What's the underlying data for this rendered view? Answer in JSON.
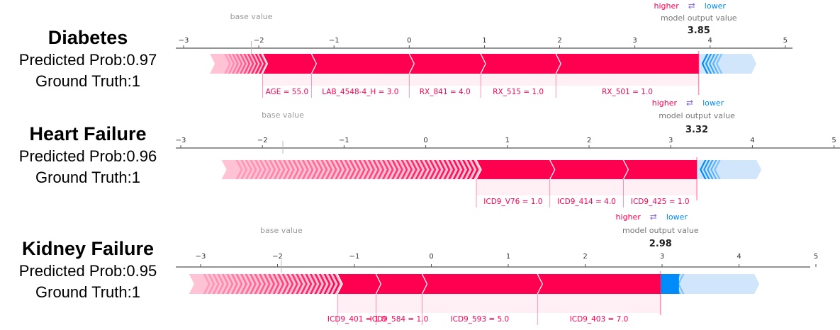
{
  "legend": {
    "higher": "higher",
    "arrows": "⇄",
    "lower": "lower",
    "output_label": "model output value",
    "base_label": "base value"
  },
  "colors": {
    "pos": "#ff0051",
    "pos_light": "#ffc3d5",
    "neg": "#008bfb",
    "neg_light": "#d1e6fa",
    "axis": "#333333",
    "tick": "#666666"
  },
  "panels": [
    {
      "disease": "Diabetes",
      "prob_line": "Predicted Prob:0.97",
      "truth_line": "Ground Truth:1"
    },
    {
      "disease": "Heart Failure",
      "prob_line": "Predicted Prob:0.96",
      "truth_line": "Ground Truth:1"
    },
    {
      "disease": "Kidney Failure",
      "prob_line": "Predicted Prob:0.95",
      "truth_line": "Ground Truth:1"
    }
  ],
  "chart_data": [
    {
      "type": "force",
      "title": "Diabetes",
      "xlim": [
        -3,
        5
      ],
      "ticks": [
        "−3",
        "−2",
        "−1",
        "0",
        "1",
        "2",
        "3",
        "4",
        "5"
      ],
      "base_value": -2.1,
      "output_value": 3.85,
      "output_label": "3.85",
      "positive": [
        {
          "label": "AGE = 55.0",
          "value": 0.65
        },
        {
          "label": "LAB_4548-4_H = 3.0",
          "value": 1.3
        },
        {
          "label": "RX_841 = 4.0",
          "value": 0.95
        },
        {
          "label": "RX_515 = 1.0",
          "value": 1.0
        },
        {
          "label": "RX_501 = 1.0",
          "value": 1.9
        }
      ],
      "pos_lower_bound": -2.65,
      "neg_upper_bound": 4.55
    },
    {
      "type": "force",
      "title": "Heart Failure",
      "xlim": [
        -3,
        5
      ],
      "ticks": [
        "−3",
        "−2",
        "−1",
        "0",
        "1",
        "2",
        "3",
        "4",
        "5"
      ],
      "base_value": -1.75,
      "output_value": 3.32,
      "output_label": "3.32",
      "positive": [
        {
          "label": "ICD9_V76 = 1.0",
          "value": 0.9
        },
        {
          "label": "ICD9_414 = 4.0",
          "value": 0.9
        },
        {
          "label": "ICD9_425 = 1.0",
          "value": 0.9
        }
      ],
      "pos_lower_bound": -2.5,
      "neg_upper_bound": 4.05
    },
    {
      "type": "force",
      "title": "Kidney Failure",
      "xlim": [
        -3,
        5
      ],
      "ticks": [
        "−3",
        "−2",
        "−1",
        "0",
        "1",
        "2",
        "3",
        "4",
        "5"
      ],
      "base_value": -1.95,
      "output_value": 2.98,
      "output_label": "2.98",
      "positive": [
        {
          "label": "ICD9_401 = 1.0",
          "value": 0.5
        },
        {
          "label": "ICD9_584 = 1.0",
          "value": 0.6
        },
        {
          "label": "ICD9_593 = 5.0",
          "value": 1.5
        },
        {
          "label": "ICD9_403 = 7.0",
          "value": 1.6
        }
      ],
      "pos_lower_bound": -3.15,
      "neg_upper_bound": 4.2
    }
  ]
}
